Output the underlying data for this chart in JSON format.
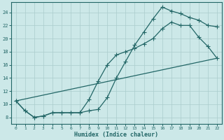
{
  "xlabel": "Humidex (Indice chaleur)",
  "bg_color": "#cce8e8",
  "grid_color": "#aacccc",
  "line_color": "#226666",
  "xlim": [
    -0.5,
    22.5
  ],
  "ylim": [
    7,
    25.5
  ],
  "xticks": [
    0,
    1,
    2,
    3,
    4,
    5,
    6,
    7,
    8,
    9,
    10,
    11,
    12,
    13,
    14,
    15,
    16,
    17,
    18,
    19,
    20,
    21,
    22
  ],
  "yticks": [
    8,
    10,
    12,
    14,
    16,
    18,
    20,
    22,
    24
  ],
  "line1_x": [
    0,
    1,
    2,
    3,
    4,
    5,
    6,
    7,
    8,
    9,
    10,
    11,
    12,
    13,
    14,
    15,
    16,
    17,
    18,
    19,
    20,
    21,
    22
  ],
  "line1_y": [
    10.5,
    9.0,
    8.0,
    8.2,
    8.7,
    8.7,
    8.7,
    8.7,
    9.0,
    9.2,
    11.0,
    14.0,
    16.5,
    19.0,
    21.0,
    23.0,
    24.8,
    24.2,
    23.8,
    23.2,
    22.8,
    22.0,
    21.8
  ],
  "line2_x": [
    0,
    1,
    2,
    3,
    4,
    5,
    6,
    7,
    8,
    9,
    10,
    11,
    12,
    13,
    14,
    15,
    16,
    17,
    18,
    19,
    20,
    21,
    22
  ],
  "line2_y": [
    10.5,
    9.0,
    8.0,
    8.2,
    8.7,
    8.7,
    8.7,
    8.7,
    10.7,
    13.5,
    16.0,
    17.5,
    18.0,
    18.5,
    19.2,
    20.0,
    21.5,
    22.5,
    22.0,
    22.0,
    20.2,
    18.8,
    17.0
  ],
  "line3_x": [
    0,
    22
  ],
  "line3_y": [
    10.5,
    17.0
  ]
}
